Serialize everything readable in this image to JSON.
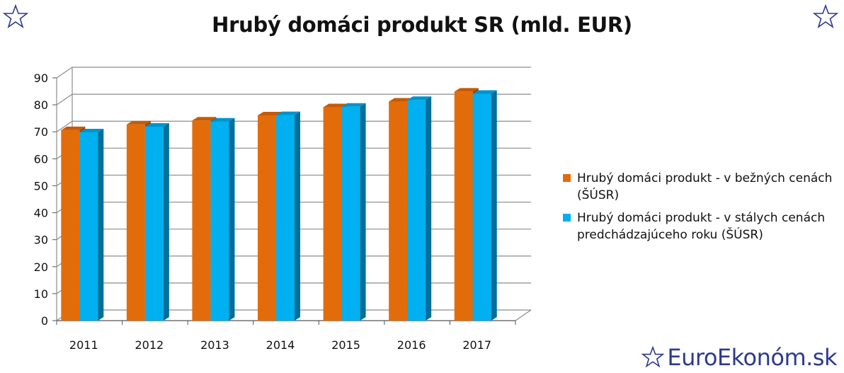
{
  "chart_data": {
    "type": "bar",
    "title": "Hrubý domáci produkt SR (mld. EUR)",
    "categories": [
      "2011",
      "2012",
      "2013",
      "2014",
      "2015",
      "2016",
      "2017"
    ],
    "series": [
      {
        "name": "Hrubý domáci produkt - v bežných cenách (ŠÚSR)",
        "color": "#e36c0a",
        "values": [
          70.6,
          72.7,
          74.2,
          76.1,
          79.1,
          81.2,
          84.9
        ]
      },
      {
        "name": "Hrubý domáci produkt - v stálych cenách predchádzajúceho roku (ŠÚSR)",
        "color": "#00b0f0",
        "values": [
          69.8,
          71.9,
          73.8,
          76.2,
          79.3,
          81.8,
          84.1
        ]
      }
    ],
    "y_ticks": [
      "0",
      "10",
      "20",
      "30",
      "40",
      "50",
      "60",
      "70",
      "80",
      "90"
    ],
    "ylim": [
      0,
      90
    ],
    "grid": true,
    "legend_position": "right",
    "style": "3d-bar"
  },
  "brand": {
    "text": "EuroEkonóm.sk",
    "star_icon": "star-icon"
  }
}
